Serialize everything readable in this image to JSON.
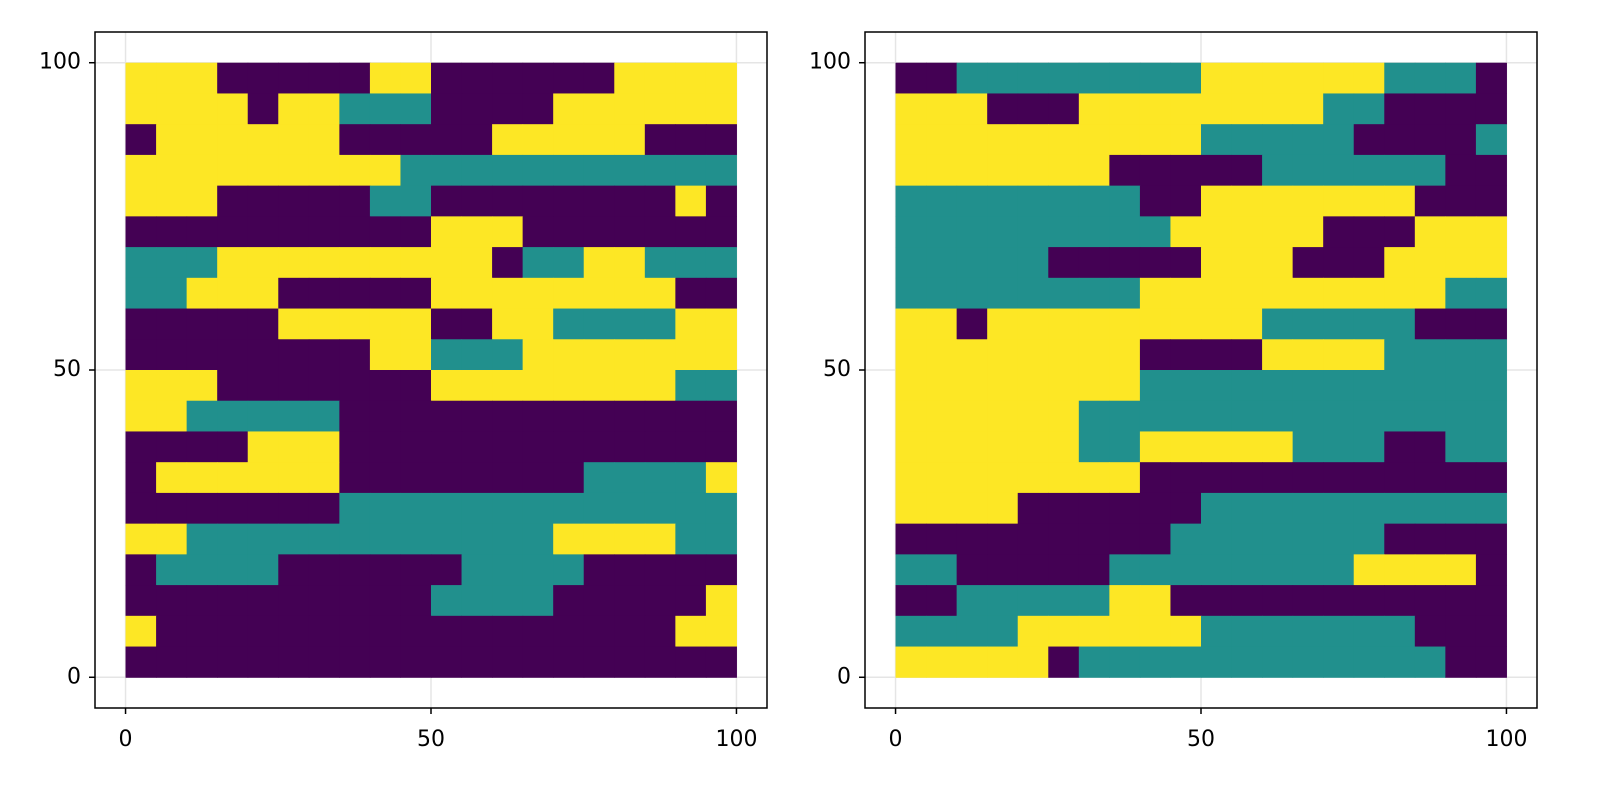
{
  "chart_data": [
    {
      "type": "heatmap",
      "x": [
        0,
        100
      ],
      "y": [
        100,
        0
      ],
      "xlim": [
        -5,
        105
      ],
      "ylim": [
        -5,
        105
      ],
      "xticks": [
        0,
        50,
        100
      ],
      "yticks": [
        0,
        50,
        100
      ],
      "grid": true,
      "colormap": [
        "#440154",
        "#21908d",
        "#fde725"
      ],
      "z": [
        [
          2,
          2,
          2,
          0,
          0,
          0,
          0,
          0,
          2,
          2,
          0,
          0,
          0,
          0,
          0,
          0,
          2,
          2,
          2,
          2
        ],
        [
          2,
          2,
          2,
          2,
          0,
          2,
          2,
          1,
          1,
          1,
          0,
          0,
          0,
          0,
          2,
          2,
          2,
          2,
          2,
          2
        ],
        [
          0,
          2,
          2,
          2,
          2,
          2,
          2,
          0,
          0,
          0,
          0,
          0,
          2,
          2,
          2,
          2,
          2,
          0,
          0,
          0
        ],
        [
          2,
          2,
          2,
          2,
          2,
          2,
          2,
          2,
          2,
          1,
          1,
          1,
          1,
          1,
          1,
          1,
          1,
          1,
          1,
          1
        ],
        [
          2,
          2,
          2,
          0,
          0,
          0,
          0,
          0,
          1,
          1,
          0,
          0,
          0,
          0,
          0,
          0,
          0,
          0,
          2,
          0
        ],
        [
          0,
          0,
          0,
          0,
          0,
          0,
          0,
          0,
          0,
          0,
          2,
          2,
          2,
          0,
          0,
          0,
          0,
          0,
          0,
          0
        ],
        [
          1,
          1,
          1,
          2,
          2,
          2,
          2,
          2,
          2,
          2,
          2,
          2,
          0,
          1,
          1,
          2,
          2,
          1,
          1,
          1
        ],
        [
          1,
          1,
          2,
          2,
          2,
          0,
          0,
          0,
          0,
          0,
          2,
          2,
          2,
          2,
          2,
          2,
          2,
          2,
          0,
          0
        ],
        [
          0,
          0,
          0,
          0,
          0,
          2,
          2,
          2,
          2,
          2,
          0,
          0,
          2,
          2,
          1,
          1,
          1,
          1,
          2,
          2
        ],
        [
          0,
          0,
          0,
          0,
          0,
          0,
          0,
          0,
          2,
          2,
          1,
          1,
          1,
          2,
          2,
          2,
          2,
          2,
          2,
          2
        ],
        [
          2,
          2,
          2,
          0,
          0,
          0,
          0,
          0,
          0,
          0,
          2,
          2,
          2,
          2,
          2,
          2,
          2,
          2,
          1,
          1
        ],
        [
          2,
          2,
          1,
          1,
          1,
          1,
          1,
          0,
          0,
          0,
          0,
          0,
          0,
          0,
          0,
          0,
          0,
          0,
          0,
          0
        ],
        [
          0,
          0,
          0,
          0,
          2,
          2,
          2,
          0,
          0,
          0,
          0,
          0,
          0,
          0,
          0,
          0,
          0,
          0,
          0,
          0
        ],
        [
          0,
          2,
          2,
          2,
          2,
          2,
          2,
          0,
          0,
          0,
          0,
          0,
          0,
          0,
          0,
          1,
          1,
          1,
          1,
          2
        ],
        [
          0,
          0,
          0,
          0,
          0,
          0,
          0,
          1,
          1,
          1,
          1,
          1,
          1,
          1,
          1,
          1,
          1,
          1,
          1,
          1
        ],
        [
          2,
          2,
          1,
          1,
          1,
          1,
          1,
          1,
          1,
          1,
          1,
          1,
          1,
          1,
          2,
          2,
          2,
          2,
          1,
          1
        ],
        [
          0,
          1,
          1,
          1,
          1,
          0,
          0,
          0,
          0,
          0,
          0,
          1,
          1,
          1,
          1,
          0,
          0,
          0,
          0,
          0
        ],
        [
          0,
          0,
          0,
          0,
          0,
          0,
          0,
          0,
          0,
          0,
          1,
          1,
          1,
          1,
          0,
          0,
          0,
          0,
          0,
          2
        ],
        [
          2,
          0,
          0,
          0,
          0,
          0,
          0,
          0,
          0,
          0,
          0,
          0,
          0,
          0,
          0,
          0,
          0,
          0,
          2,
          2
        ],
        [
          0,
          0,
          0,
          0,
          0,
          0,
          0,
          0,
          0,
          0,
          0,
          0,
          0,
          0,
          0,
          0,
          0,
          0,
          0,
          0
        ]
      ]
    },
    {
      "type": "heatmap",
      "x": [
        0,
        100
      ],
      "y": [
        100,
        0
      ],
      "xlim": [
        -5,
        105
      ],
      "ylim": [
        -5,
        105
      ],
      "xticks": [
        0,
        50,
        100
      ],
      "yticks": [
        0,
        50,
        100
      ],
      "grid": true,
      "colormap": [
        "#440154",
        "#21908d",
        "#fde725"
      ],
      "z": [
        [
          0,
          0,
          1,
          1,
          1,
          1,
          1,
          1,
          1,
          1,
          2,
          2,
          2,
          2,
          2,
          2,
          1,
          1,
          1,
          0
        ],
        [
          2,
          2,
          2,
          0,
          0,
          0,
          2,
          2,
          2,
          2,
          2,
          2,
          2,
          2,
          1,
          1,
          0,
          0,
          0,
          0
        ],
        [
          2,
          2,
          2,
          2,
          2,
          2,
          2,
          2,
          2,
          2,
          1,
          1,
          1,
          1,
          1,
          0,
          0,
          0,
          0,
          1
        ],
        [
          2,
          2,
          2,
          2,
          2,
          2,
          2,
          0,
          0,
          0,
          0,
          0,
          1,
          1,
          1,
          1,
          1,
          1,
          0,
          0
        ],
        [
          1,
          1,
          1,
          1,
          1,
          1,
          1,
          1,
          0,
          0,
          2,
          2,
          2,
          2,
          2,
          2,
          2,
          0,
          0,
          0
        ],
        [
          1,
          1,
          1,
          1,
          1,
          1,
          1,
          1,
          1,
          2,
          2,
          2,
          2,
          2,
          0,
          0,
          0,
          2,
          2,
          2
        ],
        [
          1,
          1,
          1,
          1,
          1,
          0,
          0,
          0,
          0,
          0,
          2,
          2,
          2,
          0,
          0,
          0,
          2,
          2,
          2,
          2
        ],
        [
          1,
          1,
          1,
          1,
          1,
          1,
          1,
          1,
          2,
          2,
          2,
          2,
          2,
          2,
          2,
          2,
          2,
          2,
          1,
          1
        ],
        [
          2,
          2,
          0,
          2,
          2,
          2,
          2,
          2,
          2,
          2,
          2,
          2,
          1,
          1,
          1,
          1,
          1,
          0,
          0,
          0
        ],
        [
          2,
          2,
          2,
          2,
          2,
          2,
          2,
          2,
          0,
          0,
          0,
          0,
          2,
          2,
          2,
          2,
          1,
          1,
          1,
          1
        ],
        [
          2,
          2,
          2,
          2,
          2,
          2,
          2,
          2,
          1,
          1,
          1,
          1,
          1,
          1,
          1,
          1,
          1,
          1,
          1,
          1
        ],
        [
          2,
          2,
          2,
          2,
          2,
          2,
          1,
          1,
          1,
          1,
          1,
          1,
          1,
          1,
          1,
          1,
          1,
          1,
          1,
          1
        ],
        [
          2,
          2,
          2,
          2,
          2,
          2,
          1,
          1,
          2,
          2,
          2,
          2,
          2,
          1,
          1,
          1,
          0,
          0,
          1,
          1
        ],
        [
          2,
          2,
          2,
          2,
          2,
          2,
          2,
          2,
          0,
          0,
          0,
          0,
          0,
          0,
          0,
          0,
          0,
          0,
          0,
          0
        ],
        [
          2,
          2,
          2,
          2,
          0,
          0,
          0,
          0,
          0,
          0,
          1,
          1,
          1,
          1,
          1,
          1,
          1,
          1,
          1,
          1
        ],
        [
          0,
          0,
          0,
          0,
          0,
          0,
          0,
          0,
          0,
          1,
          1,
          1,
          1,
          1,
          1,
          1,
          0,
          0,
          0,
          0
        ],
        [
          1,
          1,
          0,
          0,
          0,
          0,
          0,
          1,
          1,
          1,
          1,
          1,
          1,
          1,
          1,
          2,
          2,
          2,
          2,
          0
        ],
        [
          0,
          0,
          1,
          1,
          1,
          1,
          1,
          2,
          2,
          0,
          0,
          0,
          0,
          0,
          0,
          0,
          0,
          0,
          0,
          0
        ],
        [
          1,
          1,
          1,
          1,
          2,
          2,
          2,
          2,
          2,
          2,
          1,
          1,
          1,
          1,
          1,
          1,
          1,
          0,
          0,
          0
        ],
        [
          2,
          2,
          2,
          2,
          2,
          0,
          1,
          1,
          1,
          1,
          1,
          1,
          1,
          1,
          1,
          1,
          1,
          1,
          0,
          0
        ]
      ]
    }
  ]
}
